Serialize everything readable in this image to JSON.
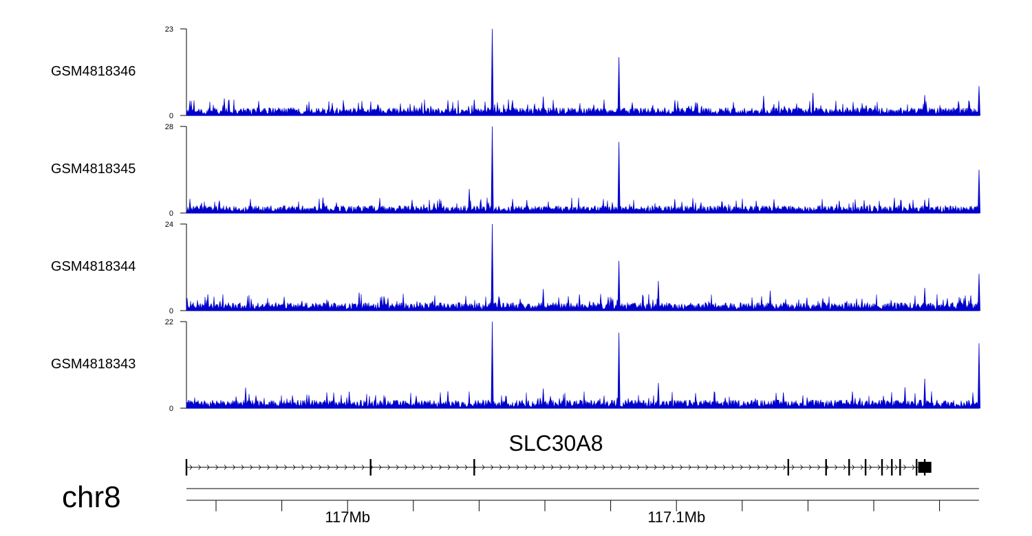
{
  "chart_data": {
    "type": "area",
    "chromosome": "chr8",
    "x_range_mb": [
      116.951,
      117.192
    ],
    "color": "#0000cc",
    "tracks": [
      {
        "name": "GSM4818346",
        "ylim": [
          0,
          23
        ],
        "baseline": 1.2,
        "peaks": [
          {
            "x": 117.044,
            "y": 23
          },
          {
            "x": 117.0825,
            "y": 15.5
          },
          {
            "x": 117.192,
            "y": 7.8
          },
          {
            "x": 117.1415,
            "y": 6
          },
          {
            "x": 117.1755,
            "y": 5.4
          },
          {
            "x": 117.0595,
            "y": 5
          },
          {
            "x": 117.1265,
            "y": 5.2
          },
          {
            "x": 117.0385,
            "y": 4.2
          },
          {
            "x": 116.9625,
            "y": 4.5
          },
          {
            "x": 117.0995,
            "y": 3.8
          }
        ]
      },
      {
        "name": "GSM4818345",
        "ylim": [
          0,
          28
        ],
        "baseline": 1.4,
        "peaks": [
          {
            "x": 117.044,
            "y": 28
          },
          {
            "x": 117.0825,
            "y": 23
          },
          {
            "x": 117.192,
            "y": 14
          },
          {
            "x": 117.037,
            "y": 7.8
          },
          {
            "x": 117.1755,
            "y": 4.3
          },
          {
            "x": 117.0995,
            "y": 4.5
          },
          {
            "x": 116.9925,
            "y": 5
          },
          {
            "x": 117.0545,
            "y": 4.2
          },
          {
            "x": 117.1495,
            "y": 4
          }
        ]
      },
      {
        "name": "GSM4818344",
        "ylim": [
          0,
          24
        ],
        "baseline": 1.3,
        "peaks": [
          {
            "x": 117.044,
            "y": 24
          },
          {
            "x": 117.0825,
            "y": 13.8
          },
          {
            "x": 117.192,
            "y": 10.2
          },
          {
            "x": 117.0945,
            "y": 8.2
          },
          {
            "x": 117.1755,
            "y": 6.3
          },
          {
            "x": 117.0595,
            "y": 6
          },
          {
            "x": 116.9575,
            "y": 4.5
          },
          {
            "x": 117.0035,
            "y": 5
          },
          {
            "x": 117.1285,
            "y": 5.5
          },
          {
            "x": 117.0705,
            "y": 4.5
          },
          {
            "x": 117.1895,
            "y": 4.2
          }
        ]
      },
      {
        "name": "GSM4818343",
        "ylim": [
          0,
          22
        ],
        "baseline": 1.2,
        "peaks": [
          {
            "x": 117.044,
            "y": 22
          },
          {
            "x": 117.0825,
            "y": 19.2
          },
          {
            "x": 117.192,
            "y": 16.5
          },
          {
            "x": 117.1755,
            "y": 7.5
          },
          {
            "x": 117.0945,
            "y": 6.4
          },
          {
            "x": 117.1695,
            "y": 5.3
          },
          {
            "x": 117.0595,
            "y": 5
          },
          {
            "x": 116.969,
            "y": 5.2
          },
          {
            "x": 117.0305,
            "y": 4.3
          },
          {
            "x": 117.1535,
            "y": 4.2
          },
          {
            "x": 117.1325,
            "y": 4
          },
          {
            "x": 117.0005,
            "y": 4.2
          }
        ]
      }
    ],
    "gene": {
      "name": "SLC30A8",
      "strand": "+",
      "start_mb": 116.951,
      "end_mb": 117.1775,
      "exons_mb": [
        116.951,
        117.007,
        117.0385,
        117.134,
        117.1455,
        117.1525,
        117.1575,
        117.1625,
        117.1655,
        117.168,
        117.173,
        117.1755
      ],
      "utr3_mb": [
        117.1735,
        117.1775
      ]
    },
    "x_axis": {
      "major_ticks_mb": [
        117.0,
        117.1
      ],
      "tick_labels": [
        "117Mb",
        "117.1Mb"
      ],
      "minor_ticks_mb": [
        116.96,
        116.98,
        117.02,
        117.04,
        117.06,
        117.08,
        117.12,
        117.14,
        117.16,
        117.18
      ]
    }
  }
}
